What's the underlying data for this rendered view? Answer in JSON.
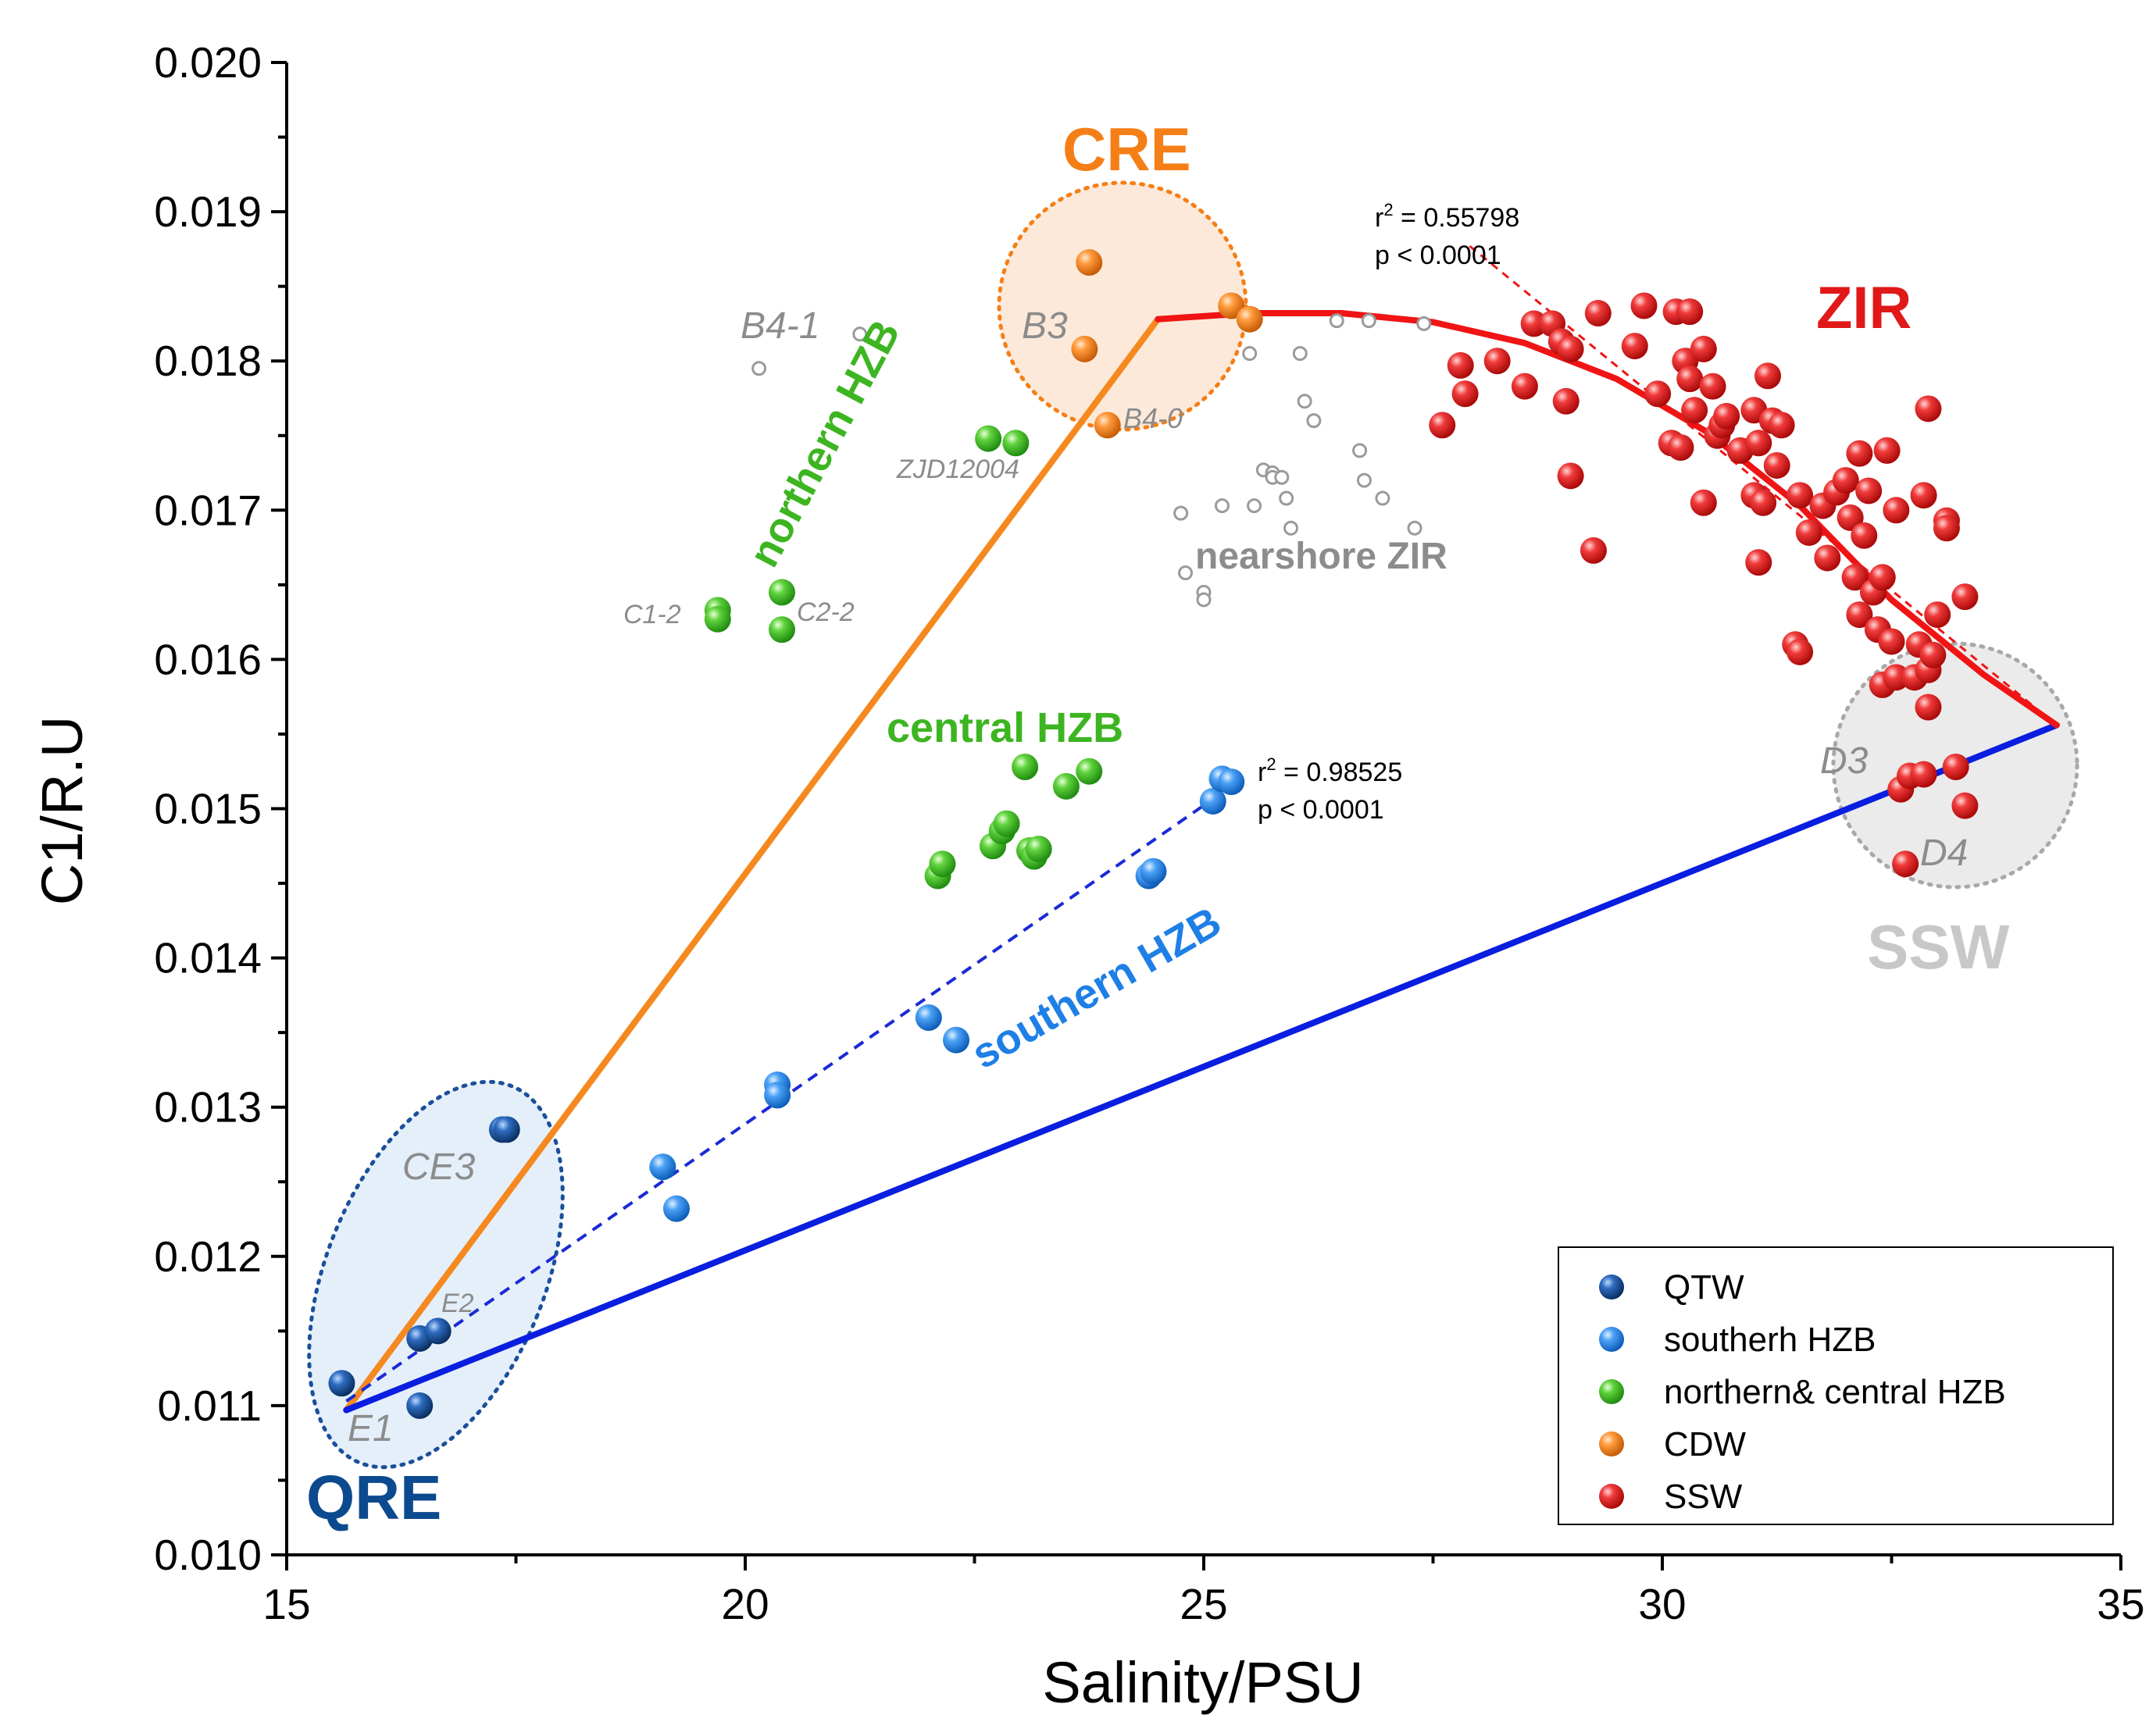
{
  "colors": {
    "QTW": "#0c4a8f",
    "southern": "#1e7fe6",
    "green": "#3cb521",
    "orange": "#f57f17",
    "red": "#e01818",
    "grey": "#9a9a9a",
    "blueLine": "#0a1ee0",
    "redLine": "#f01414",
    "orangeLine": "#f5891f",
    "dashBlue": "#1a2ad6"
  },
  "chart_data": {
    "type": "scatter",
    "xlabel": "Salinity/PSU",
    "ylabel": "C1/R.U",
    "xlim": [
      15,
      35
    ],
    "ylim": [
      0.01,
      0.02
    ],
    "xticks": [
      15,
      20,
      25,
      30,
      35
    ],
    "yticks": [
      0.01,
      0.011,
      0.012,
      0.013,
      0.014,
      0.015,
      0.016,
      0.017,
      0.018,
      0.019,
      0.02
    ],
    "xtick_labels": [
      "15",
      "20",
      "25",
      "30",
      "35"
    ],
    "ytick_labels": [
      "0.010",
      "0.011",
      "0.012",
      "0.013",
      "0.014",
      "0.015",
      "0.016",
      "0.017",
      "0.018",
      "0.019",
      "0.020"
    ],
    "series": [
      {
        "name": "QTW",
        "color": "#0c4a8f",
        "points": [
          [
            15.6,
            0.01115
          ],
          [
            16.45,
            0.01145
          ],
          [
            16.65,
            0.0115
          ],
          [
            16.45,
            0.011
          ],
          [
            17.35,
            0.01285
          ],
          [
            17.4,
            0.01285
          ]
        ]
      },
      {
        "name": "southerh HZB",
        "color": "#1e7fe6",
        "points": [
          [
            19.1,
            0.0126
          ],
          [
            19.25,
            0.01232
          ],
          [
            20.35,
            0.01315
          ],
          [
            20.35,
            0.01308
          ],
          [
            22,
            0.0136
          ],
          [
            22.3,
            0.01345
          ],
          [
            24.4,
            0.01455
          ],
          [
            24.45,
            0.01458
          ],
          [
            25.1,
            0.01505
          ],
          [
            25.2,
            0.0152
          ],
          [
            25.3,
            0.01518
          ]
        ]
      },
      {
        "name": "northern& central HZB",
        "color": "#3cb521",
        "points": [
          [
            19.7,
            0.01633
          ],
          [
            19.7,
            0.01627
          ],
          [
            20.4,
            0.01645
          ],
          [
            20.4,
            0.0162
          ],
          [
            22.65,
            0.01748
          ],
          [
            22.95,
            0.01745
          ],
          [
            22.1,
            0.01455
          ],
          [
            22.15,
            0.01463
          ],
          [
            22.7,
            0.01475
          ],
          [
            22.8,
            0.01485
          ],
          [
            22.85,
            0.0149
          ],
          [
            23.1,
            0.01472
          ],
          [
            23.15,
            0.01468
          ],
          [
            23.2,
            0.01473
          ],
          [
            23.05,
            0.01528
          ],
          [
            23.5,
            0.01515
          ],
          [
            23.75,
            0.01525
          ]
        ]
      },
      {
        "name": "CDW",
        "color": "#f57f17",
        "points": [
          [
            23.75,
            0.01866
          ],
          [
            23.7,
            0.01808
          ],
          [
            23.95,
            0.01757
          ],
          [
            25.3,
            0.01837
          ],
          [
            25.5,
            0.01828
          ]
        ]
      },
      {
        "name": "SSW",
        "color": "#e01818",
        "points": [
          [
            27.6,
            0.01757
          ],
          [
            27.8,
            0.01797
          ],
          [
            27.85,
            0.01778
          ],
          [
            28.2,
            0.018
          ],
          [
            28.5,
            0.01783
          ],
          [
            28.6,
            0.01825
          ],
          [
            28.8,
            0.01825
          ],
          [
            28.9,
            0.01813
          ],
          [
            29.0,
            0.01808
          ],
          [
            28.95,
            0.01773
          ],
          [
            29.0,
            0.01723
          ],
          [
            29.25,
            0.01673
          ],
          [
            29.3,
            0.01832
          ],
          [
            29.7,
            0.0181
          ],
          [
            29.8,
            0.01837
          ],
          [
            29.95,
            0.01778
          ],
          [
            30.1,
            0.01745
          ],
          [
            30.15,
            0.01833
          ],
          [
            30.2,
            0.01742
          ],
          [
            30.25,
            0.018
          ],
          [
            30.3,
            0.01833
          ],
          [
            30.3,
            0.01788
          ],
          [
            30.35,
            0.01767
          ],
          [
            30.45,
            0.01808
          ],
          [
            30.45,
            0.01705
          ],
          [
            30.55,
            0.01783
          ],
          [
            30.6,
            0.0175
          ],
          [
            30.65,
            0.01757
          ],
          [
            30.7,
            0.01763
          ],
          [
            30.85,
            0.0174
          ],
          [
            31.0,
            0.01767
          ],
          [
            31.0,
            0.0171
          ],
          [
            31.05,
            0.01745
          ],
          [
            31.05,
            0.01665
          ],
          [
            31.1,
            0.01705
          ],
          [
            31.15,
            0.0179
          ],
          [
            31.2,
            0.0176
          ],
          [
            31.25,
            0.0173
          ],
          [
            31.3,
            0.01757
          ],
          [
            31.45,
            0.0161
          ],
          [
            31.5,
            0.01605
          ],
          [
            31.5,
            0.0171
          ],
          [
            31.6,
            0.01685
          ],
          [
            31.75,
            0.01703
          ],
          [
            31.8,
            0.01668
          ],
          [
            31.9,
            0.01712
          ],
          [
            32.0,
            0.0172
          ],
          [
            32.05,
            0.01695
          ],
          [
            32.15,
            0.01738
          ],
          [
            32.1,
            0.01655
          ],
          [
            32.15,
            0.0163
          ],
          [
            32.2,
            0.01683
          ],
          [
            32.25,
            0.01713
          ],
          [
            32.3,
            0.01645
          ],
          [
            32.35,
            0.0162
          ],
          [
            32.4,
            0.01583
          ],
          [
            32.4,
            0.01655
          ],
          [
            32.45,
            0.0174
          ],
          [
            32.5,
            0.01612
          ],
          [
            32.55,
            0.017
          ],
          [
            32.55,
            0.01588
          ],
          [
            32.6,
            0.01513
          ],
          [
            32.65,
            0.01463
          ],
          [
            32.7,
            0.01522
          ],
          [
            32.75,
            0.01588
          ],
          [
            32.8,
            0.0161
          ],
          [
            32.85,
            0.01523
          ],
          [
            32.85,
            0.0171
          ],
          [
            32.9,
            0.01568
          ],
          [
            32.9,
            0.01593
          ],
          [
            32.9,
            0.01768
          ],
          [
            32.95,
            0.01603
          ],
          [
            33.0,
            0.0163
          ],
          [
            33.1,
            0.01693
          ],
          [
            33.1,
            0.01688
          ],
          [
            33.2,
            0.01528
          ],
          [
            33.3,
            0.01642
          ],
          [
            33.3,
            0.01502
          ]
        ]
      },
      {
        "name": "nearshore ZIR",
        "color": "#9a9a9a",
        "points": [
          [
            20.15,
            0.01795
          ],
          [
            21.25,
            0.01818
          ],
          [
            24.75,
            0.01698
          ],
          [
            24.8,
            0.01658
          ],
          [
            25.0,
            0.01645
          ],
          [
            25.0,
            0.0164
          ],
          [
            25.2,
            0.01703
          ],
          [
            25.5,
            0.01805
          ],
          [
            25.55,
            0.01703
          ],
          [
            25.65,
            0.01727
          ],
          [
            25.75,
            0.01725
          ],
          [
            25.75,
            0.01722
          ],
          [
            25.85,
            0.01722
          ],
          [
            25.9,
            0.01708
          ],
          [
            25.95,
            0.01688
          ],
          [
            26.05,
            0.01805
          ],
          [
            26.1,
            0.01773
          ],
          [
            26.2,
            0.0176
          ],
          [
            26.45,
            0.01827
          ],
          [
            26.7,
            0.0174
          ],
          [
            26.75,
            0.0172
          ],
          [
            26.8,
            0.01827
          ],
          [
            26.95,
            0.01708
          ],
          [
            27.3,
            0.01688
          ],
          [
            27.4,
            0.01825
          ]
        ]
      }
    ],
    "lines": {
      "orange_mixing": [
        [
          15.65,
          0.01097
        ],
        [
          24.5,
          0.01828
        ]
      ],
      "blue_mixing": [
        [
          15.65,
          0.01097
        ],
        [
          34.3,
          0.01556
        ]
      ],
      "blue_regression": [
        [
          15.65,
          0.01103
        ],
        [
          25.3,
          0.01515
        ]
      ],
      "red_curve": [
        [
          24.5,
          0.01828
        ],
        [
          25.5,
          0.01832
        ],
        [
          26.5,
          0.01832
        ],
        [
          27.5,
          0.01826
        ],
        [
          28.5,
          0.01812
        ],
        [
          29.5,
          0.01788
        ],
        [
          30.5,
          0.01752
        ],
        [
          31.5,
          0.01703
        ],
        [
          32.5,
          0.0164
        ],
        [
          33.5,
          0.0159
        ],
        [
          34.3,
          0.01556
        ]
      ],
      "red_regression": [
        [
          27.9,
          0.01877
        ],
        [
          34.3,
          0.01556
        ]
      ]
    },
    "annotations": {
      "region_CRE": "CRE",
      "region_ZIR": "ZIR",
      "region_QRE": "QRE",
      "region_SSW": "SSW",
      "northern_HZB": "northern HZB",
      "central_HZB": "central HZB",
      "southern_HZB": "southern HZB",
      "nearshore_ZIR": "nearshore ZIR",
      "B4_1": "B4-1",
      "B3": "B3",
      "B4_0": "B4-0",
      "ZJD12004": "ZJD12004",
      "C1_2": "C1-2",
      "C2_2": "C2-2",
      "CE3": "CE3",
      "E2": "E2",
      "E1": "E1",
      "D3": "D3",
      "D4": "D4",
      "r2_red_prefix": "r",
      "r2_red_sup": "2",
      "r2_red_value": " = 0.55798",
      "p_red": "p < 0.0001",
      "r2_blue_prefix": "r",
      "r2_blue_sup": "2",
      "r2_blue_value": " = 0.98525",
      "p_blue": "p < 0.0001"
    },
    "legend": {
      "position": "bottom-right",
      "entries": [
        {
          "label": "QTW",
          "color": "#0c4a8f"
        },
        {
          "label": "southerh HZB",
          "color": "#1e7fe6"
        },
        {
          "label": "northern& central HZB",
          "color": "#3cb521"
        },
        {
          "label": "CDW",
          "color": "#f57f17"
        },
        {
          "label": "SSW",
          "color": "#e01818"
        }
      ]
    }
  }
}
